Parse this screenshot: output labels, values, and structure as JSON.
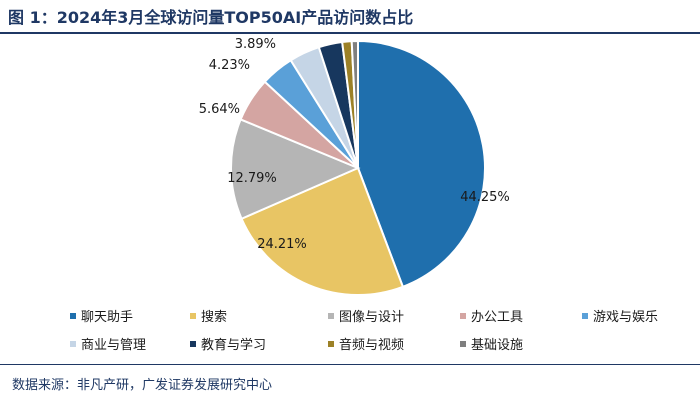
{
  "figure": {
    "title": "图 1：2024年3月全球访问量TOP50AI产品访问数占比",
    "source": "数据来源：非凡产研，广发证券发展研究中心"
  },
  "chart_data": {
    "type": "pie",
    "title": "2024年3月全球访问量TOP50AI产品访问数占比",
    "legend_position": "bottom",
    "slices": [
      {
        "name": "聊天助手",
        "value": 44.25,
        "label": "44.25%",
        "color": "#1f6fad"
      },
      {
        "name": "搜索",
        "value": 24.21,
        "label": "24.21%",
        "color": "#e8c564"
      },
      {
        "name": "图像与设计",
        "value": 12.79,
        "label": "12.79%",
        "color": "#b5b5b5"
      },
      {
        "name": "办公工具",
        "value": 5.64,
        "label": "5.64%",
        "color": "#d4a5a2"
      },
      {
        "name": "游戏与娱乐",
        "value": 4.23,
        "label": "4.23%",
        "color": "#5aa0d8"
      },
      {
        "name": "商业与管理",
        "value": 3.89,
        "label": "3.89%",
        "color": "#c5d5e6"
      },
      {
        "name": "教育与学习",
        "value": 3.0,
        "label": "",
        "color": "#17375e"
      },
      {
        "name": "音频与视频",
        "value": 1.2,
        "label": "",
        "color": "#9c8127"
      },
      {
        "name": "基础设施",
        "value": 0.79,
        "label": "",
        "color": "#7f7f7f"
      }
    ]
  }
}
